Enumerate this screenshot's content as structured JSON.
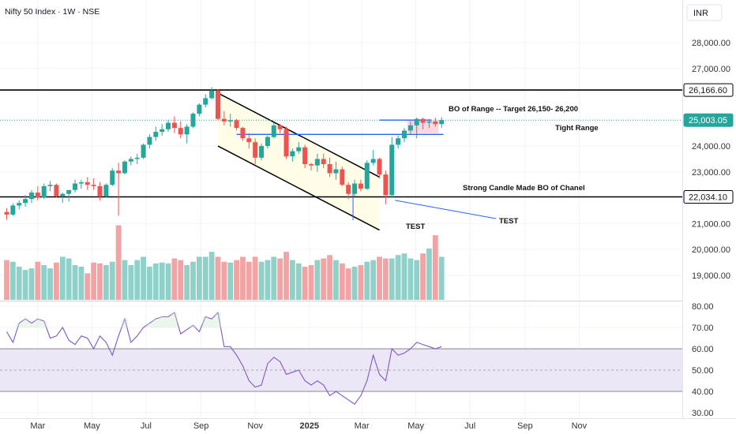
{
  "header": {
    "title": "Nifty 50 Index · 1W · NSE",
    "currency": "INR"
  },
  "colors": {
    "up": "#26a69a",
    "down": "#ef5350",
    "volume_up": "#8fd0c8",
    "volume_down": "#f3a3a3",
    "channel_fill": "#fffde7",
    "range_line": "#2962ff",
    "box_fill": "#f8c8d4",
    "rsi_line": "#7e57c2",
    "rsi_band": "#ece7f7"
  },
  "chart_data": [
    {
      "type": "candlestick",
      "title": "Nifty 50 Index · 1W · NSE",
      "y_tick_labels": [
        "28,000.00",
        "27,000.00",
        "24,000.00",
        "23,000.00",
        "21,000.00",
        "20,000.00",
        "19,000.00"
      ],
      "y_ticks": [
        28000,
        27000,
        24000,
        23000,
        21000,
        20000,
        19000
      ],
      "price_tags": [
        {
          "value": 26166.6,
          "label": "26,166.60",
          "style": "level"
        },
        {
          "value": 25003.05,
          "label": "25,003.05",
          "style": "last"
        },
        {
          "value": 22034.1,
          "label": "22,034.10",
          "style": "level"
        }
      ],
      "x_tick_labels": [
        "Mar",
        "May",
        "Jul",
        "Sep",
        "Nov",
        "2025",
        "Mar",
        "May",
        "Jul",
        "Sep",
        "Nov"
      ],
      "x_axis_start": "2024-01-26",
      "x_ticks": [
        "2024-03-01",
        "2024-05-01",
        "2024-07-01",
        "2024-09-01",
        "2024-11-01",
        "2025-01-01",
        "2025-03-01",
        "2025-05-01",
        "2025-07-01",
        "2025-09-01",
        "2025-11-01"
      ],
      "ohlc": [
        [
          21450,
          21600,
          21150,
          21350
        ],
        [
          21350,
          21780,
          21300,
          21700
        ],
        [
          21700,
          21900,
          21550,
          21800
        ],
        [
          21800,
          22100,
          21650,
          21950
        ],
        [
          21950,
          22300,
          21800,
          22200
        ],
        [
          22200,
          22450,
          21900,
          22000
        ],
        [
          22000,
          22550,
          21950,
          22450
        ],
        [
          22450,
          22650,
          22250,
          22500
        ],
        [
          22500,
          22550,
          22000,
          22050
        ],
        [
          22050,
          22200,
          21800,
          22150
        ],
        [
          22150,
          22300,
          21850,
          22300
        ],
        [
          22300,
          22700,
          22200,
          22550
        ],
        [
          22550,
          22700,
          22350,
          22600
        ],
        [
          22600,
          22800,
          22300,
          22500
        ],
        [
          22500,
          22750,
          22300,
          22450
        ],
        [
          22450,
          22600,
          21900,
          22050
        ],
        [
          22050,
          22550,
          22000,
          22500
        ],
        [
          22500,
          23150,
          22450,
          23050
        ],
        [
          23050,
          23350,
          21300,
          22950
        ],
        [
          22950,
          23450,
          22900,
          23400
        ],
        [
          23400,
          23600,
          23250,
          23500
        ],
        [
          23500,
          23700,
          23300,
          23550
        ],
        [
          23550,
          24100,
          23500,
          24050
        ],
        [
          24050,
          24450,
          23900,
          24350
        ],
        [
          24350,
          24750,
          24200,
          24550
        ],
        [
          24550,
          24850,
          24400,
          24650
        ],
        [
          24650,
          25000,
          24550,
          24900
        ],
        [
          24900,
          25150,
          24500,
          24700
        ],
        [
          24700,
          24950,
          24300,
          24450
        ],
        [
          24450,
          24850,
          24100,
          24750
        ],
        [
          24750,
          25300,
          24700,
          25250
        ],
        [
          25250,
          25650,
          25150,
          25600
        ],
        [
          25600,
          26000,
          25500,
          25850
        ],
        [
          25850,
          26277,
          25800,
          26150
        ],
        [
          26150,
          26200,
          25000,
          25050
        ],
        [
          25050,
          25350,
          24800,
          24950
        ],
        [
          24950,
          25250,
          24750,
          25000
        ],
        [
          25000,
          25050,
          24600,
          24700
        ],
        [
          24700,
          24750,
          24200,
          24300
        ],
        [
          24300,
          24500,
          23900,
          24150
        ],
        [
          24150,
          24300,
          23300,
          23550
        ],
        [
          23550,
          24100,
          23450,
          24000
        ],
        [
          24000,
          24400,
          23900,
          24350
        ],
        [
          24350,
          24900,
          24300,
          24800
        ],
        [
          24800,
          24850,
          24500,
          24650
        ],
        [
          24650,
          24750,
          23500,
          23600
        ],
        [
          23600,
          23900,
          23400,
          23800
        ],
        [
          23800,
          24150,
          23700,
          23950
        ],
        [
          23950,
          24050,
          23150,
          23300
        ],
        [
          23300,
          23350,
          23050,
          23250
        ],
        [
          23250,
          23700,
          23000,
          23500
        ],
        [
          23500,
          23700,
          23150,
          23300
        ],
        [
          23300,
          23550,
          22800,
          22950
        ],
        [
          22950,
          23400,
          22700,
          23100
        ],
        [
          23100,
          23200,
          22450,
          22500
        ],
        [
          22500,
          22600,
          21950,
          22150
        ],
        [
          22150,
          22700,
          22050,
          22550
        ],
        [
          22550,
          22700,
          22250,
          22350
        ],
        [
          22350,
          23450,
          22300,
          23350
        ],
        [
          23350,
          23850,
          23250,
          23500
        ],
        [
          23500,
          23550,
          22750,
          22900
        ],
        [
          22900,
          23050,
          21750,
          22100
        ],
        [
          22100,
          24350,
          22000,
          24050
        ],
        [
          24050,
          24400,
          23900,
          24300
        ],
        [
          24300,
          24700,
          24150,
          24600
        ],
        [
          24600,
          24950,
          24450,
          24800
        ],
        [
          24800,
          25100,
          24300,
          25050
        ],
        [
          25050,
          25100,
          24650,
          24900
        ],
        [
          24900,
          25050,
          24700,
          24950
        ],
        [
          24950,
          25100,
          24750,
          24850
        ],
        [
          24850,
          25120,
          24700,
          25003
        ]
      ],
      "volume": [
        48,
        46,
        40,
        36,
        38,
        46,
        42,
        38,
        45,
        52,
        50,
        42,
        40,
        32,
        45,
        44,
        42,
        46,
        90,
        48,
        42,
        48,
        52,
        40,
        44,
        45,
        44,
        50,
        48,
        42,
        46,
        52,
        52,
        58,
        52,
        46,
        45,
        48,
        52,
        46,
        52,
        46,
        48,
        52,
        50,
        58,
        48,
        44,
        40,
        42,
        48,
        50,
        54,
        48,
        44,
        38,
        40,
        42,
        46,
        48,
        52,
        50,
        50,
        54,
        56,
        50,
        48,
        56,
        62,
        78,
        52
      ],
      "annotations": [
        {
          "text": "BO of Range -- Target 26,150- 26,200"
        },
        {
          "text": "Tight Range"
        },
        {
          "text": "Strong Candle Made BO of Chanel"
        },
        {
          "text": "TEST"
        },
        {
          "text": "TEST"
        }
      ],
      "channel": {
        "upper": [
          [
            34,
            26050
          ],
          [
            60,
            22800
          ]
        ],
        "lower": [
          [
            34,
            24000
          ],
          [
            60,
            20750
          ]
        ]
      },
      "tight_range": {
        "top": 25003.05,
        "bottom": 24450,
        "x_from": 37,
        "x_to": 68
      },
      "breakout_box": {
        "top": 25000,
        "bottom": 24500,
        "x_from": 65,
        "x_to": 69
      }
    },
    {
      "type": "line",
      "title": "",
      "y_tick_labels": [
        "80.00",
        "70.00",
        "60.00",
        "50.00",
        "40.00",
        "30.00"
      ],
      "y_ticks": [
        80,
        70,
        60,
        50,
        40,
        30
      ],
      "band": [
        40,
        60
      ],
      "mid": 50,
      "values": [
        68,
        63,
        72,
        74,
        72,
        74,
        73,
        65,
        66,
        70,
        64,
        62,
        66,
        65,
        60,
        66,
        63,
        57,
        66,
        74,
        63,
        66,
        70,
        72,
        74,
        75,
        75,
        77,
        67,
        69,
        71,
        68,
        75,
        74,
        77,
        61,
        61,
        57,
        52,
        45,
        42,
        43,
        53,
        56,
        54,
        48,
        49,
        50,
        45,
        43,
        45,
        43,
        38,
        40,
        38,
        36,
        34,
        38,
        45,
        57,
        48,
        45,
        60,
        57,
        58,
        60,
        63,
        62,
        61,
        60,
        61
      ]
    }
  ]
}
